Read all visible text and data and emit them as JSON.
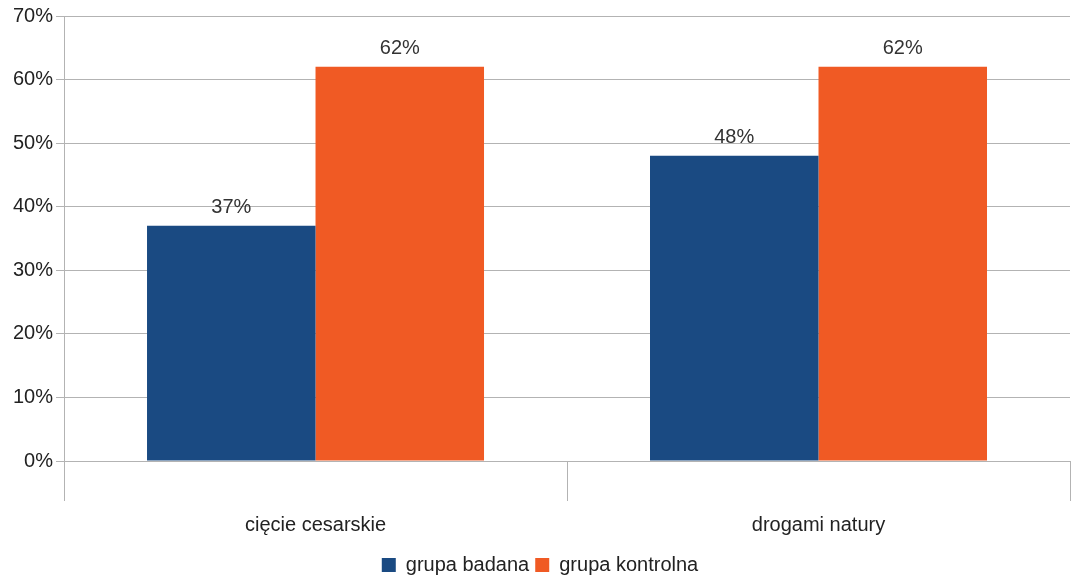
{
  "chart_data": {
    "type": "bar",
    "categories": [
      "cięcie cesarskie",
      "drogami natury"
    ],
    "series": [
      {
        "name": "grupa badana",
        "color": "#1a4a82",
        "values": [
          37,
          48
        ],
        "value_labels": [
          "37%",
          "48%"
        ]
      },
      {
        "name": "grupa kontrolna",
        "color": "#f05a24",
        "values": [
          62,
          62
        ],
        "value_labels": [
          "62%",
          "62%"
        ]
      }
    ],
    "ylim": [
      0,
      70
    ],
    "yticks": [
      {
        "value": 0,
        "label": "0%"
      },
      {
        "value": 10,
        "label": "10%"
      },
      {
        "value": 20,
        "label": "20%"
      },
      {
        "value": 30,
        "label": "30%"
      },
      {
        "value": 40,
        "label": "40%"
      },
      {
        "value": 50,
        "label": "50%"
      },
      {
        "value": 60,
        "label": "60%"
      },
      {
        "value": 70,
        "label": "70%"
      }
    ],
    "grid": "y",
    "legend": "bottom"
  }
}
